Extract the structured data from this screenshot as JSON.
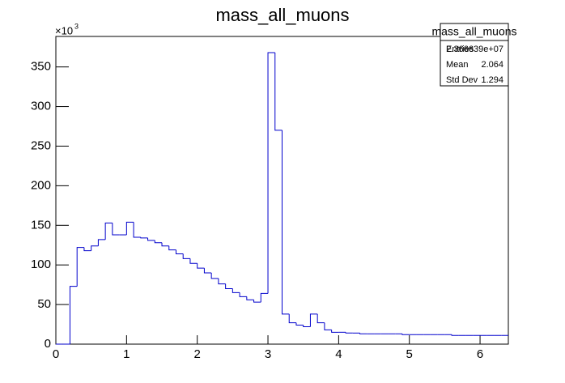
{
  "chart_data": {
    "type": "histogram",
    "title": "mass_all_muons",
    "bins": [
      0,
      0.1,
      0.2,
      0.3,
      0.4,
      0.5,
      0.6,
      0.7,
      0.8,
      0.9,
      1,
      1.1,
      1.2,
      1.3,
      1.4,
      1.5,
      1.6,
      1.7,
      1.8,
      1.9,
      2,
      2.1,
      2.2,
      2.3,
      2.4,
      2.5,
      2.6,
      2.7,
      2.8,
      2.9,
      3,
      3.1,
      3.2,
      3.3,
      3.4,
      3.5,
      3.6,
      3.7,
      3.8,
      3.9,
      4,
      4.1,
      4.2,
      4.3,
      4.4,
      4.5,
      4.6,
      4.7,
      4.8,
      4.9,
      5,
      5.1,
      5.2,
      5.3,
      5.4,
      5.5,
      5.6,
      5.7,
      5.8,
      5.9,
      6,
      6.1,
      6.2,
      6.3,
      6.4
    ],
    "values": [
      0,
      0,
      73,
      122,
      118,
      124,
      132,
      153,
      138,
      138,
      154,
      135,
      134,
      131,
      128,
      124,
      119,
      114,
      108,
      102,
      96,
      90,
      83,
      76,
      70,
      65,
      60,
      56,
      53,
      64,
      368,
      270,
      38,
      27,
      24,
      22,
      38,
      27,
      18,
      15,
      15,
      14,
      14,
      13,
      13,
      13,
      13,
      13,
      13,
      12,
      12,
      12,
      12,
      12,
      12,
      12,
      11,
      11,
      11,
      11,
      11,
      11,
      11,
      11
    ],
    "color": "#0000cc",
    "xlim": [
      0,
      6.4
    ],
    "xticks": [
      0,
      1,
      2,
      3,
      4,
      5,
      6
    ],
    "ylim": [
      0,
      388.5
    ],
    "yticks": [
      0,
      50,
      100,
      150,
      200,
      250,
      300,
      350
    ],
    "y_multiplier": {
      "base": "×10",
      "exponent": "3"
    },
    "stats": {
      "name": "mass_all_muons",
      "rows": [
        [
          "Entries",
          "2.366639e+07"
        ],
        [
          "Mean",
          "2.064"
        ],
        [
          "Std Dev",
          "1.294"
        ]
      ]
    }
  }
}
